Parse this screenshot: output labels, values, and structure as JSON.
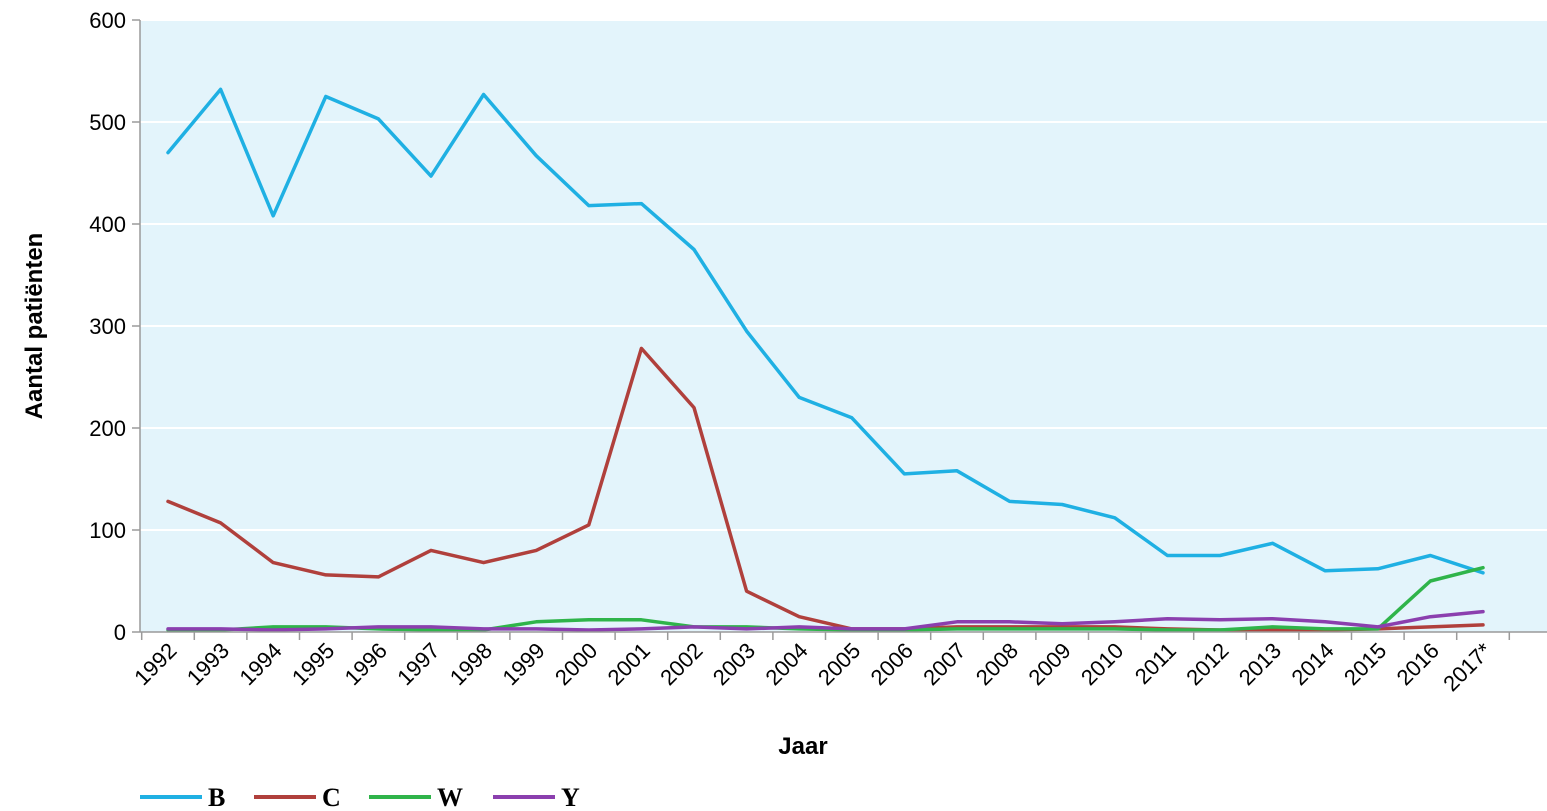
{
  "chart_data": {
    "type": "line",
    "xlabel": "Jaar",
    "ylabel": "Aantal patiënten",
    "categories": [
      "1992",
      "1993",
      "1994",
      "1995",
      "1996",
      "1997",
      "1998",
      "1999",
      "2000",
      "2001",
      "2002",
      "2003",
      "2004",
      "2005",
      "2006",
      "2007",
      "2008",
      "2009",
      "2010",
      "2011",
      "2012",
      "2013",
      "2014",
      "2015",
      "2016",
      "2017*"
    ],
    "ylim": [
      0,
      600
    ],
    "yticks": [
      0,
      100,
      200,
      300,
      400,
      500,
      600
    ],
    "grid": true,
    "legend": "bottom-left",
    "plot_background": "#e3f4fb",
    "series": [
      {
        "name": "B",
        "color": "#1fb0e3",
        "values": [
          470,
          532,
          408,
          525,
          503,
          447,
          527,
          467,
          418,
          420,
          375,
          295,
          230,
          210,
          155,
          158,
          128,
          125,
          112,
          75,
          75,
          87,
          60,
          62,
          75,
          58
        ]
      },
      {
        "name": "C",
        "color": "#b0403c",
        "values": [
          128,
          107,
          68,
          56,
          54,
          80,
          68,
          80,
          105,
          278,
          220,
          40,
          15,
          3,
          3,
          5,
          5,
          5,
          5,
          3,
          2,
          2,
          2,
          3,
          5,
          7
        ]
      },
      {
        "name": "W",
        "color": "#2fb44a",
        "values": [
          2,
          2,
          5,
          5,
          3,
          2,
          2,
          10,
          12,
          12,
          5,
          5,
          3,
          2,
          2,
          3,
          3,
          3,
          3,
          2,
          2,
          5,
          3,
          3,
          50,
          63
        ]
      },
      {
        "name": "Y",
        "color": "#8b3fae",
        "values": [
          3,
          3,
          2,
          3,
          5,
          5,
          3,
          3,
          2,
          3,
          5,
          3,
          5,
          3,
          3,
          10,
          10,
          8,
          10,
          13,
          12,
          13,
          10,
          5,
          15,
          20
        ]
      }
    ]
  }
}
